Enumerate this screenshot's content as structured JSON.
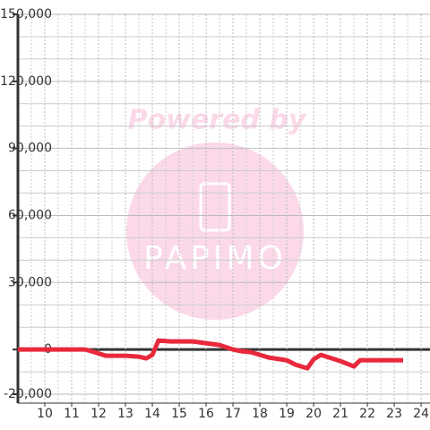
{
  "chart_data": {
    "type": "line",
    "watermark": {
      "top": "Powered by",
      "logo": "PAPIMO"
    },
    "x": [
      9,
      11.5,
      11.8,
      12.27,
      13,
      13.5,
      13.77,
      14,
      14.23,
      14.67,
      15.5,
      16,
      16.5,
      17,
      17.33,
      17.67,
      18.33,
      19,
      19.33,
      19.77,
      20,
      20.27,
      21,
      21.5,
      21.73,
      23.33
    ],
    "series": [
      {
        "color": "#e8293c",
        "values": [
          0,
          0,
          -1000,
          -2800,
          -2800,
          -3200,
          -4000,
          -2400,
          4000,
          3600,
          3600,
          2800,
          2000,
          0,
          -800,
          -1200,
          -3600,
          -4800,
          -6800,
          -8400,
          -4400,
          -2400,
          -5200,
          -7600,
          -4800,
          -4800
        ]
      }
    ],
    "xlim": [
      9,
      24.33
    ],
    "xticks": [
      10,
      11,
      12,
      13,
      14,
      15,
      16,
      17,
      18,
      19,
      20,
      21,
      22,
      23,
      24
    ],
    "ylim": [
      -24000,
      150000
    ],
    "yticks": [
      {
        "value": -20000,
        "label": "-20,000"
      },
      0,
      {
        "value": 30000,
        "label": "30,000"
      },
      {
        "value": 60000,
        "label": "60,000"
      },
      {
        "value": 90000,
        "label": "90,000"
      },
      {
        "value": 120000,
        "label": "120,000"
      },
      {
        "value": 150000,
        "label": "150,000"
      }
    ],
    "grid": true
  }
}
